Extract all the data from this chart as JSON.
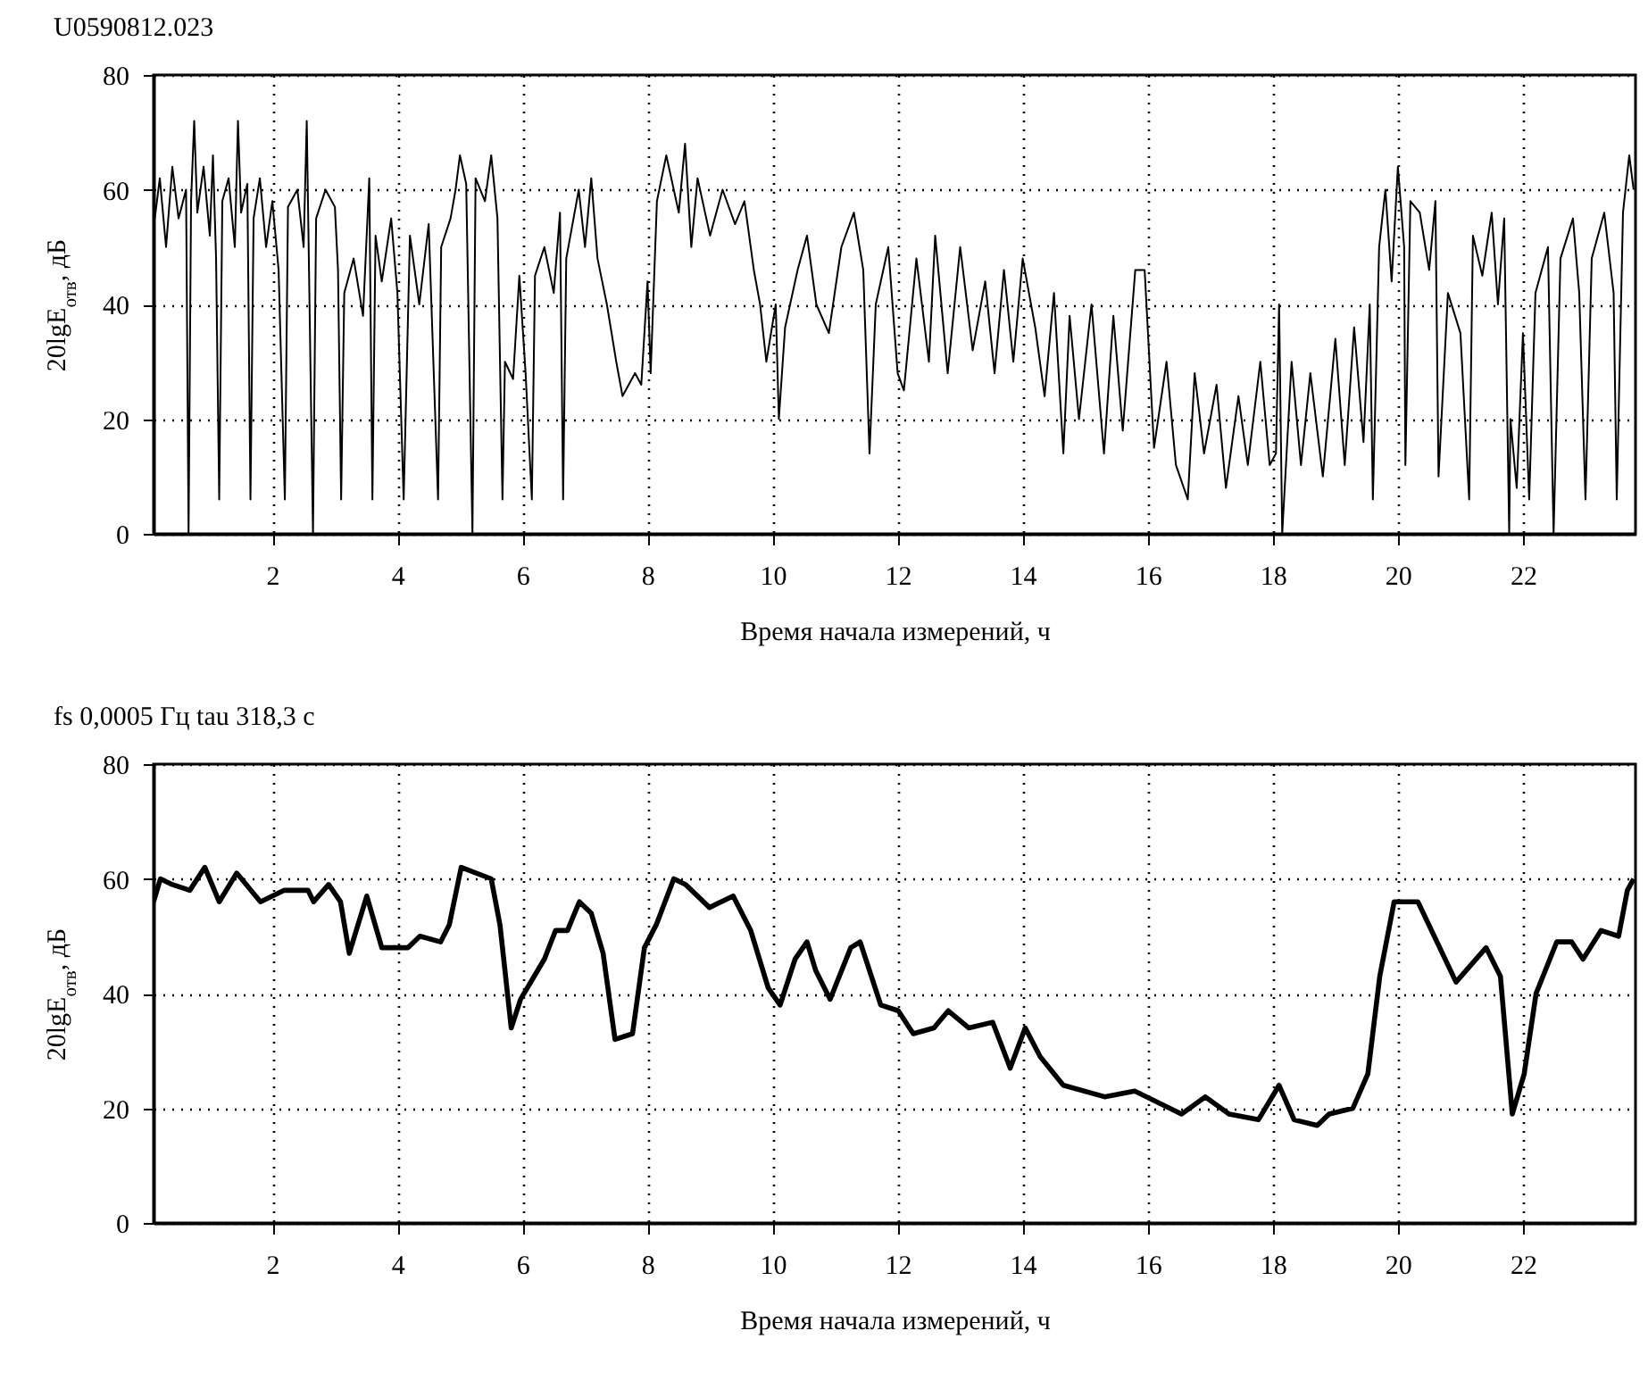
{
  "chart_data": [
    {
      "type": "line",
      "title": "U0590812.023",
      "xlabel": "Время начала измерений, ч",
      "ylabel": "20lgE$_{отв}$, дБ",
      "xlim": [
        0.1,
        23.8
      ],
      "ylim": [
        0,
        80
      ],
      "xticks": [
        2,
        4,
        6,
        8,
        10,
        12,
        14,
        16,
        18,
        20,
        22
      ],
      "yticks": [
        0,
        20,
        40,
        60,
        80
      ],
      "grid": true,
      "x": [
        0.12,
        0.2,
        0.3,
        0.4,
        0.5,
        0.62,
        0.66,
        0.7,
        0.75,
        0.8,
        0.9,
        1.0,
        1.05,
        1.1,
        1.15,
        1.2,
        1.3,
        1.4,
        1.45,
        1.5,
        1.6,
        1.65,
        1.7,
        1.8,
        1.9,
        2.0,
        2.1,
        2.2,
        2.25,
        2.4,
        2.5,
        2.55,
        2.65,
        2.7,
        2.85,
        3.0,
        3.05,
        3.1,
        3.15,
        3.3,
        3.45,
        3.55,
        3.6,
        3.65,
        3.75,
        3.9,
        4.0,
        4.1,
        4.2,
        4.35,
        4.5,
        4.65,
        4.7,
        4.85,
        4.93,
        5.0,
        5.1,
        5.2,
        5.25,
        5.4,
        5.5,
        5.6,
        5.68,
        5.72,
        5.85,
        5.95,
        6.05,
        6.15,
        6.2,
        6.35,
        6.5,
        6.6,
        6.65,
        6.7,
        6.9,
        7.0,
        7.1,
        7.2,
        7.35,
        7.5,
        7.6,
        7.8,
        7.9,
        8.0,
        8.05,
        8.15,
        8.3,
        8.5,
        8.6,
        8.7,
        8.8,
        9.0,
        9.2,
        9.4,
        9.55,
        9.7,
        9.8,
        9.9,
        10.05,
        10.1,
        10.2,
        10.4,
        10.55,
        10.7,
        10.9,
        11.1,
        11.3,
        11.45,
        11.55,
        11.65,
        11.85,
        12.0,
        12.1,
        12.3,
        12.5,
        12.6,
        12.8,
        13.0,
        13.2,
        13.4,
        13.55,
        13.7,
        13.85,
        14.0,
        14.2,
        14.35,
        14.5,
        14.65,
        14.75,
        14.9,
        15.1,
        15.3,
        15.45,
        15.6,
        15.8,
        15.95,
        16.1,
        16.3,
        16.45,
        16.64,
        16.75,
        16.9,
        17.1,
        17.25,
        17.45,
        17.6,
        17.8,
        17.95,
        18.05,
        18.1,
        18.15,
        18.3,
        18.45,
        18.6,
        18.8,
        19.0,
        19.15,
        19.3,
        19.45,
        19.55,
        19.6,
        19.7,
        19.8,
        19.9,
        20.0,
        20.1,
        20.12,
        20.2,
        20.35,
        20.5,
        20.6,
        20.65,
        20.8,
        21.0,
        21.14,
        21.2,
        21.35,
        21.5,
        21.6,
        21.7,
        21.78,
        21.8,
        21.9,
        22.0,
        22.1,
        22.2,
        22.4,
        22.49,
        22.6,
        22.8,
        22.9,
        23.0,
        23.1,
        23.3,
        23.45,
        23.5,
        23.6,
        23.7,
        23.77
      ],
      "series": [
        {
          "color": "#000000",
          "values": [
            55,
            62,
            50,
            64,
            55,
            60,
            0,
            58,
            72,
            56,
            64,
            52,
            66,
            48,
            6,
            58,
            62,
            50,
            72,
            56,
            61,
            6,
            55,
            62,
            50,
            58,
            46,
            6,
            57,
            60,
            50,
            72,
            0,
            55,
            60,
            57,
            46,
            6,
            42,
            48,
            38,
            62,
            6,
            52,
            44,
            55,
            42,
            6,
            52,
            40,
            54,
            6,
            50,
            55,
            60,
            66,
            61,
            0,
            62,
            58,
            66,
            55,
            6,
            30,
            27,
            45,
            28,
            6,
            45,
            50,
            42,
            56,
            6,
            48,
            60,
            50,
            62,
            48,
            40,
            30,
            24,
            28,
            26,
            44,
            28,
            58,
            66,
            56,
            68,
            50,
            62,
            52,
            60,
            54,
            58,
            46,
            40,
            30,
            40,
            20,
            36,
            46,
            52,
            40,
            35,
            50,
            56,
            46,
            14,
            40,
            50,
            28,
            25,
            48,
            30,
            52,
            28,
            50,
            32,
            44,
            28,
            46,
            30,
            48,
            36,
            24,
            42,
            14,
            38,
            20,
            40,
            14,
            38,
            18,
            46,
            46,
            15,
            30,
            12,
            6,
            28,
            14,
            26,
            8,
            24,
            12,
            30,
            12,
            14,
            40,
            0,
            30,
            12,
            28,
            10,
            34,
            12,
            36,
            16,
            40,
            6,
            50,
            60,
            44,
            64,
            50,
            12,
            58,
            56,
            46,
            58,
            10,
            42,
            35,
            6,
            52,
            45,
            56,
            40,
            55,
            0,
            20,
            8,
            35,
            6,
            42,
            50,
            0,
            48,
            55,
            42,
            6,
            48,
            56,
            42,
            6,
            56,
            66,
            60
          ]
        }
      ]
    },
    {
      "type": "line",
      "title": "fs 0,0005 Гц tau 318,3 с",
      "xlabel": "Время начала измерений, ч",
      "ylabel": "20lgE$_{отв}$, дБ",
      "xlim": [
        0.1,
        23.8
      ],
      "ylim": [
        0,
        80
      ],
      "xticks": [
        2,
        4,
        6,
        8,
        10,
        12,
        14,
        16,
        18,
        20,
        22
      ],
      "yticks": [
        0,
        20,
        40,
        60,
        80
      ],
      "grid": true,
      "x": [
        0.1,
        0.21,
        0.4,
        0.68,
        0.92,
        1.15,
        1.43,
        1.81,
        2.19,
        2.57,
        2.66,
        2.9,
        3.09,
        3.23,
        3.51,
        3.75,
        4.17,
        4.36,
        4.69,
        4.83,
        5.02,
        5.5,
        5.64,
        5.82,
        5.97,
        6.35,
        6.53,
        6.72,
        6.91,
        7.1,
        7.29,
        7.48,
        7.76,
        7.95,
        8.14,
        8.42,
        8.61,
        8.99,
        9.37,
        9.65,
        9.93,
        10.12,
        10.36,
        10.55,
        10.69,
        10.92,
        11.25,
        11.4,
        11.73,
        12.01,
        12.25,
        12.58,
        12.81,
        13.14,
        13.52,
        13.8,
        14.04,
        14.28,
        14.65,
        15.31,
        15.79,
        16.54,
        16.92,
        17.3,
        17.77,
        18.1,
        18.34,
        18.71,
        18.9,
        19.28,
        19.52,
        19.71,
        19.94,
        20.32,
        20.93,
        21.41,
        21.64,
        21.83,
        22.02,
        22.21,
        22.54,
        22.78,
        22.96,
        23.25,
        23.53,
        23.67,
        23.77
      ],
      "series": [
        {
          "color": "#000000",
          "values": [
            56,
            60,
            59,
            58,
            62,
            56,
            61,
            56,
            58,
            58,
            56,
            59,
            56,
            47,
            57,
            48,
            48,
            50,
            49,
            52,
            62,
            60,
            52,
            34,
            39,
            46,
            51,
            51,
            56,
            54,
            47,
            32,
            33,
            48,
            52,
            60,
            59,
            55,
            57,
            51,
            41,
            38,
            46,
            49,
            44,
            39,
            48,
            49,
            38,
            37,
            33,
            34,
            37,
            34,
            35,
            27,
            34,
            29,
            24,
            22,
            23,
            19,
            22,
            19,
            18,
            24,
            18,
            17,
            19,
            20,
            26,
            43,
            56,
            56,
            42,
            48,
            43,
            19,
            26,
            40,
            49,
            49,
            46,
            51,
            50,
            58,
            60
          ]
        }
      ]
    }
  ]
}
